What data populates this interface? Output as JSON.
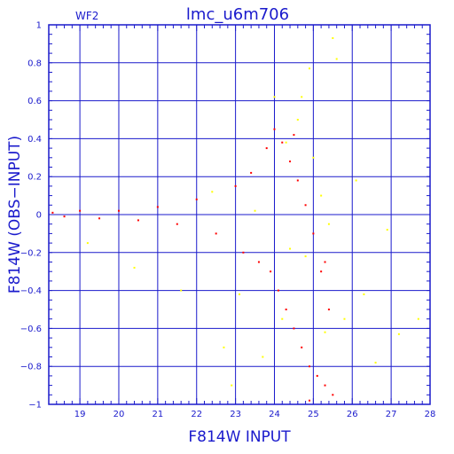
{
  "chart_data": {
    "type": "scatter",
    "chip_label": "WF2",
    "title": "lmc_u6m706",
    "xlabel": "F814W INPUT",
    "ylabel": "F814W (OBS−INPUT)",
    "xlim": [
      18.2,
      28
    ],
    "ylim": [
      -1,
      1
    ],
    "xticks": [
      18,
      19,
      20,
      21,
      22,
      23,
      24,
      25,
      26,
      27,
      28
    ],
    "xtick_labels": [
      "18",
      "19",
      "20",
      "21",
      "22",
      "23",
      "24",
      "25",
      "26",
      "27",
      "28"
    ],
    "yticks": [
      -1,
      -0.8,
      -0.6,
      -0.4,
      -0.2,
      0,
      0.2,
      0.4,
      0.6,
      0.8,
      1
    ],
    "ytick_labels": [
      "−1",
      "−0.8",
      "−0.6",
      "−0.4",
      "−0.2",
      "0",
      "0.2",
      "0.4",
      "0.6",
      "0.8",
      "1"
    ],
    "grid": true,
    "colors": {
      "axis": "#1a1acc",
      "grid": "#1a1acc",
      "red_series": "#ff0000",
      "yellow_series": "#ffff00"
    },
    "series": [
      {
        "color": "#ff0000",
        "points": [
          [
            18.3,
            0.01
          ],
          [
            18.6,
            -0.01
          ],
          [
            19.0,
            0.02
          ],
          [
            19.5,
            -0.02
          ],
          [
            20.0,
            0.02
          ],
          [
            20.5,
            -0.03
          ],
          [
            21.0,
            0.04
          ],
          [
            21.5,
            -0.05
          ],
          [
            22.0,
            0.08
          ],
          [
            22.5,
            -0.1
          ],
          [
            23.0,
            0.15
          ],
          [
            23.2,
            -0.2
          ],
          [
            23.4,
            0.22
          ],
          [
            23.6,
            -0.25
          ],
          [
            23.8,
            0.35
          ],
          [
            23.9,
            -0.3
          ],
          [
            24.0,
            0.45
          ],
          [
            24.1,
            -0.4
          ],
          [
            24.2,
            0.38
          ],
          [
            24.3,
            -0.5
          ],
          [
            24.4,
            0.28
          ],
          [
            24.5,
            -0.6
          ],
          [
            24.6,
            0.18
          ],
          [
            24.7,
            -0.7
          ],
          [
            24.8,
            0.05
          ],
          [
            24.9,
            -0.8
          ],
          [
            25.0,
            -0.1
          ],
          [
            25.1,
            -0.85
          ],
          [
            25.2,
            -0.3
          ],
          [
            25.3,
            -0.9
          ],
          [
            25.4,
            -0.5
          ],
          [
            25.5,
            -0.95
          ],
          [
            24.5,
            0.42
          ],
          [
            24.9,
            -0.98
          ],
          [
            25.3,
            -0.25
          ]
        ]
      },
      {
        "color": "#ffff00",
        "points": [
          [
            19.2,
            -0.15
          ],
          [
            20.4,
            -0.28
          ],
          [
            21.6,
            -0.4
          ],
          [
            22.4,
            0.12
          ],
          [
            22.7,
            -0.7
          ],
          [
            23.1,
            -0.42
          ],
          [
            23.7,
            -0.75
          ],
          [
            24.0,
            0.62
          ],
          [
            24.2,
            -0.55
          ],
          [
            24.4,
            -0.18
          ],
          [
            24.6,
            0.5
          ],
          [
            24.7,
            0.62
          ],
          [
            24.9,
            0.77
          ],
          [
            25.0,
            0.3
          ],
          [
            25.2,
            0.1
          ],
          [
            25.3,
            -0.62
          ],
          [
            25.5,
            0.93
          ],
          [
            25.6,
            0.82
          ],
          [
            25.8,
            -0.55
          ],
          [
            26.1,
            0.18
          ],
          [
            26.3,
            -0.42
          ],
          [
            26.6,
            -0.78
          ],
          [
            26.9,
            -0.08
          ],
          [
            27.2,
            -0.63
          ],
          [
            27.7,
            -0.55
          ],
          [
            25.4,
            -0.05
          ],
          [
            24.8,
            -0.22
          ],
          [
            24.3,
            0.38
          ],
          [
            23.5,
            0.02
          ],
          [
            22.9,
            -0.9
          ]
        ]
      }
    ]
  }
}
